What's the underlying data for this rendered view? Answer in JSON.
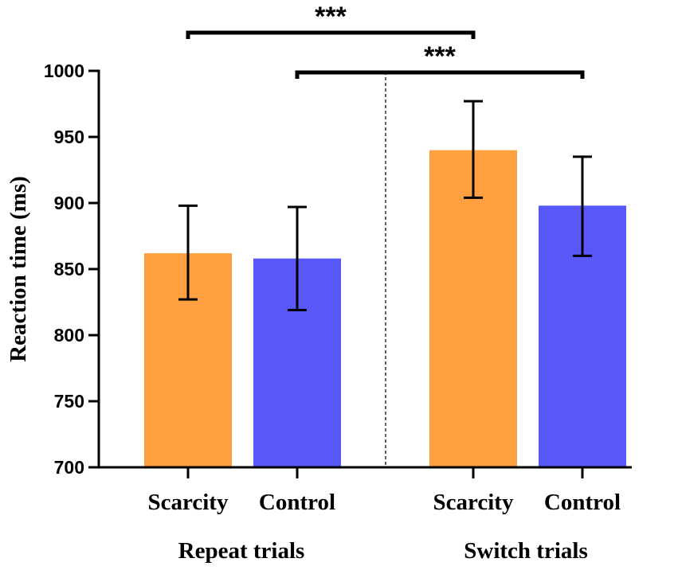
{
  "chart_data": {
    "type": "bar",
    "title": "",
    "xlabel": "",
    "ylabel": "Reaction time (ms)",
    "ylim": [
      700,
      1000
    ],
    "yticks": [
      700,
      750,
      800,
      850,
      900,
      950,
      1000
    ],
    "grid": false,
    "groups": [
      {
        "label": "Repeat trials",
        "bars": [
          {
            "label": "Scarcity",
            "value": 862,
            "err_low": 827,
            "err_high": 898
          },
          {
            "label": "Control",
            "value": 858,
            "err_low": 819,
            "err_high": 897
          }
        ]
      },
      {
        "label": "Switch trials",
        "bars": [
          {
            "label": "Scarcity",
            "value": 940,
            "err_low": 904,
            "err_high": 977
          },
          {
            "label": "Control",
            "value": 898,
            "err_low": 860,
            "err_high": 935
          }
        ]
      }
    ],
    "colors": {
      "Scarcity": "#ffa040",
      "Control": "#5858f8"
    },
    "significance": [
      {
        "from": "Repeat trials / Scarcity",
        "to": "Switch trials / Scarcity",
        "label": "***"
      },
      {
        "from": "Repeat trials / Control",
        "to": "Switch trials / Control",
        "label": "***"
      }
    ]
  }
}
